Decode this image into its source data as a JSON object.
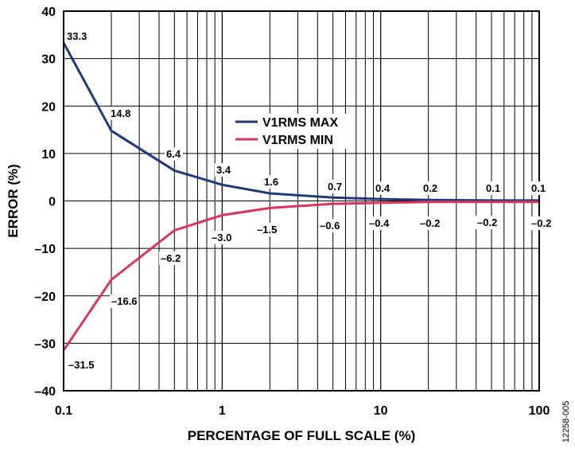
{
  "figure_id": "12258-005",
  "chart_data": {
    "type": "line",
    "title": "",
    "xlabel": "PERCENTAGE OF FULL SCALE (%)",
    "ylabel": "ERROR (%)",
    "xscale": "log",
    "xlim": [
      0.1,
      100
    ],
    "ylim": [
      -40,
      40
    ],
    "xticks": [
      {
        "value": 0.1,
        "label": "0.1"
      },
      {
        "value": 1,
        "label": "1"
      },
      {
        "value": 10,
        "label": "10"
      },
      {
        "value": 100,
        "label": "100"
      }
    ],
    "yticks": [
      {
        "value": 40,
        "label": "40"
      },
      {
        "value": 30,
        "label": "30"
      },
      {
        "value": 20,
        "label": "20"
      },
      {
        "value": 10,
        "label": "10"
      },
      {
        "value": 0,
        "label": "0"
      },
      {
        "value": -10,
        "label": "–10"
      },
      {
        "value": -20,
        "label": "–20"
      },
      {
        "value": -30,
        "label": "–30"
      },
      {
        "value": -40,
        "label": "–40"
      }
    ],
    "grid": true,
    "legend_position": "upper-center",
    "series": [
      {
        "name": "V1RMS MAX",
        "color": "#1f3a7a",
        "x": [
          0.1,
          0.2,
          0.5,
          1,
          2,
          5,
          10,
          20,
          50,
          100
        ],
        "y": [
          33.3,
          14.8,
          6.4,
          3.4,
          1.6,
          0.7,
          0.4,
          0.2,
          0.1,
          0.1
        ],
        "labels": [
          "33.3",
          "14.8",
          "6.4",
          "3.4",
          "1.6",
          "0.7",
          "0.4",
          "0.2",
          "0.1",
          "0.1"
        ]
      },
      {
        "name": "V1RMS MIN",
        "color": "#d8345f",
        "x": [
          0.1,
          0.2,
          0.5,
          1,
          2,
          5,
          10,
          20,
          50,
          100
        ],
        "y": [
          -31.5,
          -16.6,
          -6.2,
          -3.0,
          -1.5,
          -0.6,
          -0.4,
          -0.2,
          -0.2,
          -0.2
        ],
        "labels": [
          "–31.5",
          "–16.6",
          "–6.2",
          "–3.0",
          "–1.5",
          "–0.6",
          "–0.4",
          "–0.2",
          "–0.2",
          "–0.2"
        ]
      }
    ]
  }
}
